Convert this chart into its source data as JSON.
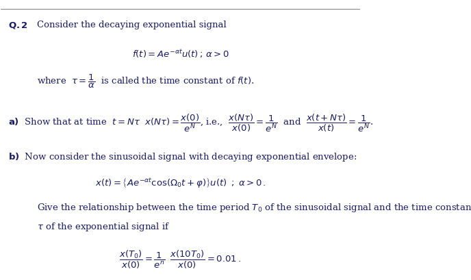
{
  "bg_color": "#ffffff",
  "text_color": "#1a1a6e",
  "line_color": "#888888",
  "title": "Q.2",
  "fig_width": 6.88,
  "fig_height": 4.1,
  "dpi": 100
}
